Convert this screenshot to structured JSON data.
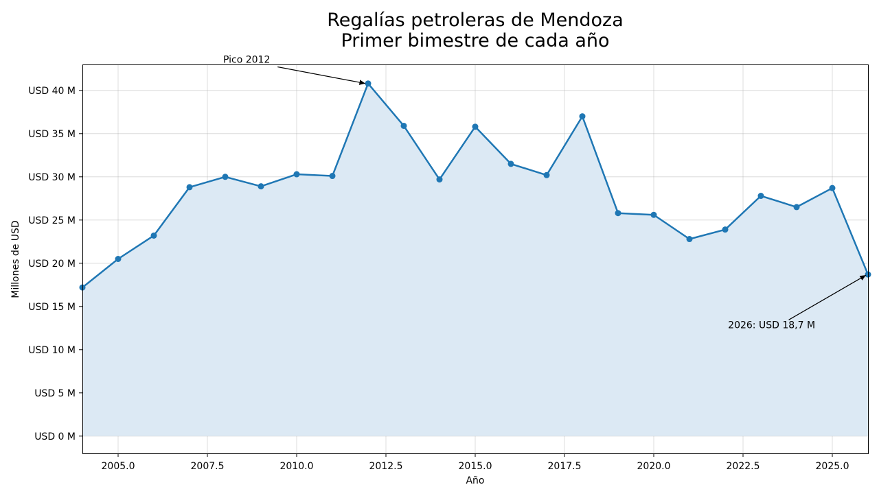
{
  "chart_data": {
    "type": "area",
    "title_lines": [
      "Regalías petroleras de Mendoza",
      "Primer bimestre de cada año"
    ],
    "xlabel": "Año",
    "ylabel": "Millones de USD",
    "xlim": [
      2004,
      2026
    ],
    "ylim": [
      -2,
      43
    ],
    "grid": true,
    "x_ticks": [
      2005.0,
      2007.5,
      2010.0,
      2012.5,
      2015.0,
      2017.5,
      2020.0,
      2022.5,
      2025.0
    ],
    "x_tick_labels": [
      "2005.0",
      "2007.5",
      "2010.0",
      "2012.5",
      "2015.0",
      "2017.5",
      "2020.0",
      "2022.5",
      "2025.0"
    ],
    "y_ticks": [
      0,
      5,
      10,
      15,
      20,
      25,
      30,
      35,
      40
    ],
    "y_tick_labels": [
      "USD 0 M",
      "USD 5 M",
      "USD 10 M",
      "USD 15 M",
      "USD 20 M",
      "USD 25 M",
      "USD 30 M",
      "USD 35 M",
      "USD 40 M"
    ],
    "series": [
      {
        "color": "#1f77b4",
        "fill_color": "#dce9f4",
        "x": [
          2004,
          2005,
          2006,
          2007,
          2008,
          2009,
          2010,
          2011,
          2012,
          2013,
          2014,
          2015,
          2016,
          2017,
          2018,
          2019,
          2020,
          2021,
          2022,
          2023,
          2024,
          2025,
          2026
        ],
        "values": [
          17.2,
          20.5,
          23.2,
          28.8,
          30.0,
          28.9,
          30.3,
          30.1,
          40.8,
          35.9,
          29.7,
          35.8,
          31.5,
          30.2,
          37.0,
          25.8,
          25.6,
          22.8,
          23.9,
          27.8,
          26.5,
          28.7,
          18.7
        ]
      }
    ],
    "annotations": [
      {
        "text": "Pico 2012",
        "point": [
          2012,
          40.8
        ],
        "text_at": [
          2008.6,
          43.2
        ]
      },
      {
        "text": "2026: USD 18,7 M",
        "point": [
          2026,
          18.7
        ],
        "text_at": [
          2023.3,
          12.5
        ]
      }
    ]
  }
}
